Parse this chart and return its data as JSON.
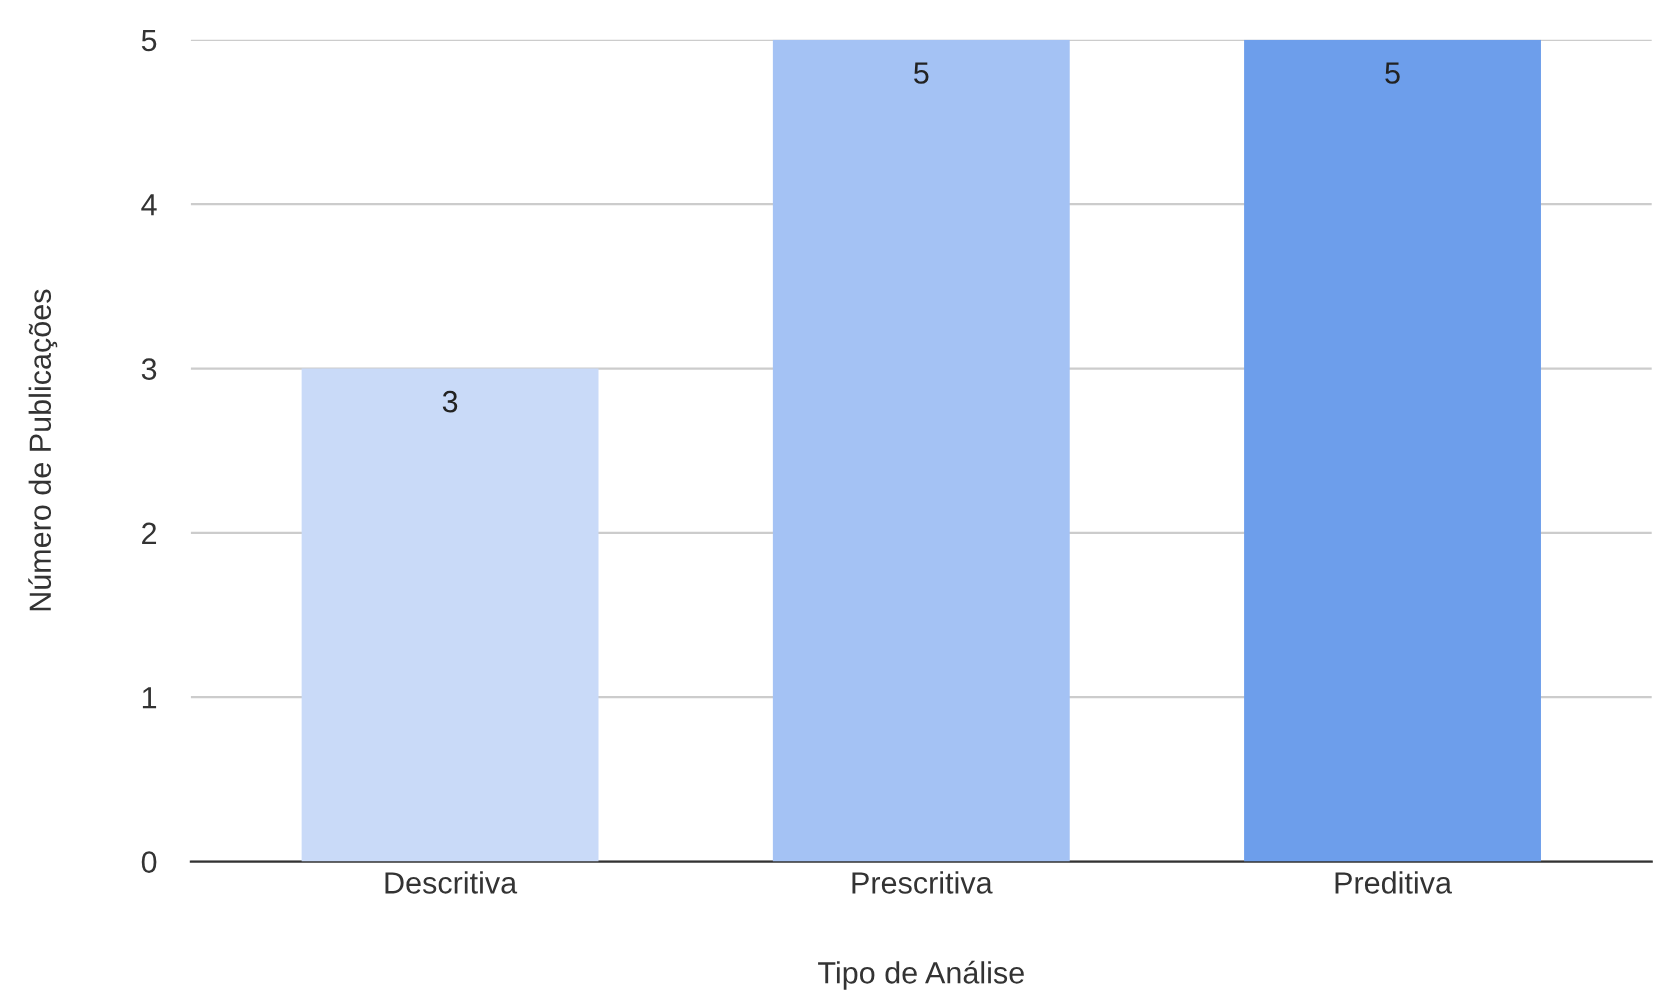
{
  "chart_data": {
    "type": "bar",
    "xlabel": "Tipo de Análise",
    "ylabel": "Número de Publicações",
    "categories": [
      "Descritiva",
      "Prescritiva",
      "Preditiva"
    ],
    "values": [
      3,
      5,
      5
    ],
    "colors": [
      "#c9daf8",
      "#a4c2f4",
      "#6d9eeb"
    ],
    "ylim": [
      0,
      5
    ],
    "yticks": [
      0,
      1,
      2,
      3,
      4,
      5
    ],
    "grid": "y",
    "data_labels": true,
    "legend": false
  }
}
